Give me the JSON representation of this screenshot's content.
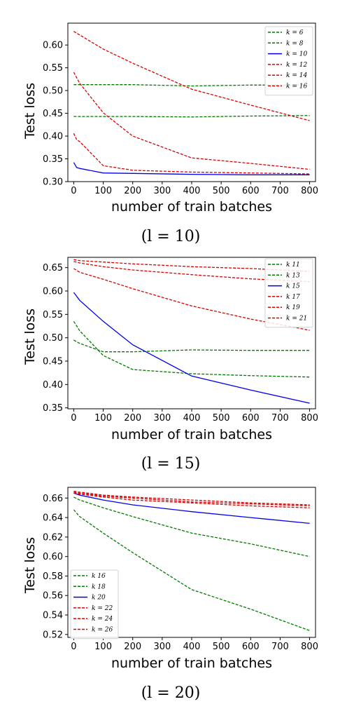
{
  "colors": {
    "green": "#007a00",
    "blue": "#0000ee",
    "red": "#dd0000"
  },
  "chart_data": [
    {
      "type": "line",
      "caption": "(l = 10)",
      "xlabel": "number of train batches",
      "ylabel": "Test loss",
      "xlim": [
        -20,
        820
      ],
      "ylim": [
        0.3,
        0.648
      ],
      "xticks": [
        0,
        100,
        200,
        300,
        400,
        500,
        600,
        700,
        800
      ],
      "yticks": [
        0.3,
        0.35,
        0.4,
        0.45,
        0.5,
        0.55,
        0.6
      ],
      "ytick_labels": [
        "0.30",
        "0.35",
        "0.40",
        "0.45",
        "0.50",
        "0.55",
        "0.60"
      ],
      "legend_position": "top-right",
      "series": [
        {
          "name": "k = 6",
          "color": "green",
          "dashed": true,
          "x": [
            0,
            20,
            100,
            200,
            400,
            600,
            800
          ],
          "y": [
            0.513,
            0.513,
            0.513,
            0.513,
            0.51,
            0.512,
            0.512
          ]
        },
        {
          "name": "k = 8",
          "color": "green",
          "dashed": true,
          "x": [
            0,
            20,
            100,
            200,
            400,
            600,
            800
          ],
          "y": [
            0.443,
            0.443,
            0.443,
            0.443,
            0.442,
            0.444,
            0.445
          ]
        },
        {
          "name": "k = 10",
          "color": "blue",
          "dashed": false,
          "x": [
            0,
            10,
            20,
            100,
            200,
            400,
            600,
            800
          ],
          "y": [
            0.342,
            0.331,
            0.329,
            0.319,
            0.318,
            0.316,
            0.315,
            0.315
          ]
        },
        {
          "name": "k = 12",
          "color": "red",
          "dashed": true,
          "x": [
            0,
            10,
            20,
            100,
            200,
            400,
            600,
            800
          ],
          "y": [
            0.406,
            0.392,
            0.388,
            0.335,
            0.325,
            0.321,
            0.319,
            0.317
          ]
        },
        {
          "name": "k = 14",
          "color": "red",
          "dashed": true,
          "x": [
            0,
            20,
            100,
            200,
            400,
            600,
            800
          ],
          "y": [
            0.54,
            0.516,
            0.451,
            0.4,
            0.352,
            0.34,
            0.327
          ]
        },
        {
          "name": "k = 16",
          "color": "red",
          "dashed": true,
          "x": [
            0,
            20,
            100,
            200,
            400,
            600,
            800
          ],
          "y": [
            0.63,
            0.622,
            0.591,
            0.56,
            0.503,
            0.468,
            0.434
          ]
        }
      ]
    },
    {
      "type": "line",
      "caption": "(l = 15)",
      "xlabel": "number of train batches",
      "ylabel": "Test loss",
      "xlim": [
        -20,
        820
      ],
      "ylim": [
        0.348,
        0.672
      ],
      "xticks": [
        0,
        100,
        200,
        300,
        400,
        500,
        600,
        700,
        800
      ],
      "yticks": [
        0.35,
        0.4,
        0.45,
        0.5,
        0.55,
        0.6,
        0.65
      ],
      "ytick_labels": [
        "0.35",
        "0.40",
        "0.45",
        "0.50",
        "0.55",
        "0.60",
        "0.65"
      ],
      "legend_position": "top-right",
      "series": [
        {
          "name": "k   11",
          "color": "green",
          "dashed": true,
          "x": [
            0,
            20,
            100,
            200,
            400,
            600,
            800
          ],
          "y": [
            0.495,
            0.488,
            0.47,
            0.47,
            0.474,
            0.473,
            0.473
          ]
        },
        {
          "name": "k   13",
          "color": "green",
          "dashed": true,
          "x": [
            0,
            20,
            100,
            200,
            400,
            600,
            800
          ],
          "y": [
            0.535,
            0.515,
            0.462,
            0.432,
            0.423,
            0.419,
            0.416
          ]
        },
        {
          "name": "k   15",
          "color": "blue",
          "dashed": false,
          "x": [
            0,
            20,
            100,
            200,
            400,
            600,
            800
          ],
          "y": [
            0.597,
            0.58,
            0.535,
            0.485,
            0.418,
            0.388,
            0.36
          ]
        },
        {
          "name": "k   17",
          "color": "red",
          "dashed": true,
          "x": [
            0,
            20,
            100,
            200,
            400,
            600,
            800
          ],
          "y": [
            0.648,
            0.64,
            0.625,
            0.605,
            0.568,
            0.54,
            0.516
          ]
        },
        {
          "name": "k   19",
          "color": "red",
          "dashed": true,
          "x": [
            0,
            20,
            100,
            200,
            400,
            600,
            800
          ],
          "y": [
            0.663,
            0.66,
            0.652,
            0.645,
            0.635,
            0.626,
            0.62
          ]
        },
        {
          "name": "k = 21",
          "color": "red",
          "dashed": true,
          "x": [
            0,
            20,
            100,
            200,
            400,
            600,
            800
          ],
          "y": [
            0.667,
            0.665,
            0.662,
            0.658,
            0.652,
            0.648,
            0.642
          ]
        }
      ]
    },
    {
      "type": "line",
      "caption": "(l = 20)",
      "xlabel": "number of train batches",
      "ylabel": "Test loss",
      "xlim": [
        -20,
        820
      ],
      "ylim": [
        0.517,
        0.671
      ],
      "xticks": [
        0,
        100,
        200,
        300,
        400,
        500,
        600,
        700,
        800
      ],
      "yticks": [
        0.52,
        0.54,
        0.56,
        0.58,
        0.6,
        0.62,
        0.64,
        0.66
      ],
      "ytick_labels": [
        "0.52",
        "0.54",
        "0.56",
        "0.58",
        "0.60",
        "0.62",
        "0.64",
        "0.66"
      ],
      "legend_position": "bottom-left",
      "series": [
        {
          "name": "k   16",
          "color": "green",
          "dashed": true,
          "x": [
            0,
            20,
            100,
            200,
            400,
            600,
            800
          ],
          "y": [
            0.648,
            0.641,
            0.624,
            0.604,
            0.566,
            0.546,
            0.524
          ]
        },
        {
          "name": "k   18",
          "color": "green",
          "dashed": true,
          "x": [
            0,
            20,
            100,
            200,
            400,
            600,
            800
          ],
          "y": [
            0.661,
            0.658,
            0.65,
            0.641,
            0.624,
            0.613,
            0.6
          ]
        },
        {
          "name": "k   20",
          "color": "blue",
          "dashed": false,
          "x": [
            0,
            20,
            100,
            200,
            400,
            600,
            800
          ],
          "y": [
            0.665,
            0.663,
            0.658,
            0.653,
            0.646,
            0.64,
            0.634
          ]
        },
        {
          "name": "k = 22",
          "color": "red",
          "dashed": true,
          "x": [
            0,
            20,
            100,
            200,
            400,
            600,
            800
          ],
          "y": [
            0.665,
            0.664,
            0.661,
            0.658,
            0.655,
            0.652,
            0.65
          ]
        },
        {
          "name": "k = 24",
          "color": "red",
          "dashed": true,
          "x": [
            0,
            20,
            100,
            200,
            400,
            600,
            800
          ],
          "y": [
            0.666,
            0.665,
            0.662,
            0.66,
            0.656,
            0.654,
            0.652
          ]
        },
        {
          "name": "k = 26",
          "color": "red",
          "dashed": true,
          "x": [
            0,
            20,
            100,
            200,
            400,
            600,
            800
          ],
          "y": [
            0.667,
            0.666,
            0.663,
            0.661,
            0.658,
            0.655,
            0.653
          ]
        }
      ]
    }
  ]
}
